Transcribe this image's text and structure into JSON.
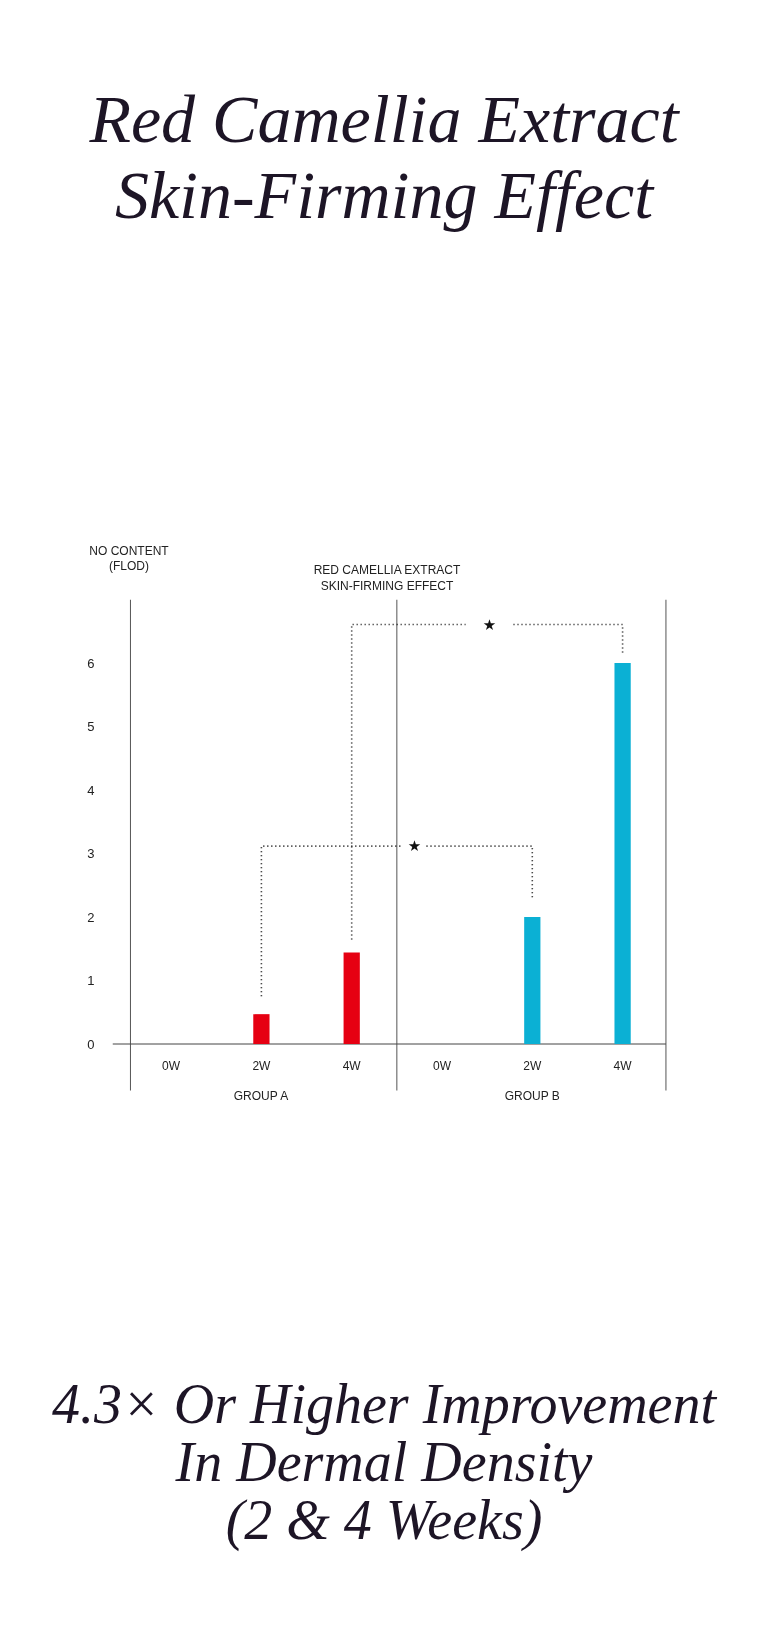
{
  "chart_data": {
    "type": "bar",
    "title": "Red Camellia Extract\nSkin-Firming Effect",
    "subtitle": "RED CAMELLIA EXTRACT\nSKIN-FIRMING EFFECT",
    "ylabel": "NO CONTENT\n(FLOD)",
    "categories": [
      "0W",
      "2W",
      "4W",
      "0W",
      "2W",
      "4W"
    ],
    "series": [
      {
        "color": "#e60012",
        "values": [
          0,
          0.47,
          1.44,
          null,
          null,
          null
        ]
      },
      {
        "color": "#0bb0d4",
        "values": [
          null,
          null,
          null,
          0,
          2,
          6
        ]
      }
    ],
    "ylim": [
      0,
      7
    ],
    "yticks": [
      0,
      1,
      2,
      3,
      4,
      5,
      6
    ],
    "annotations": [
      "★",
      "★",
      "GROUP A",
      "GROUP B",
      "4.3× Or Higher Improvement\nIn Dermal Density\n(2 & 4 Weeks)"
    ]
  }
}
